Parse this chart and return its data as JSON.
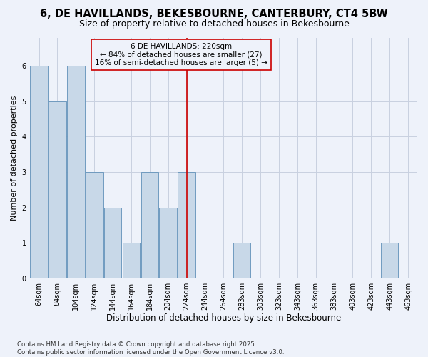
{
  "title": "6, DE HAVILLANDS, BEKESBOURNE, CANTERBURY, CT4 5BW",
  "subtitle": "Size of property relative to detached houses in Bekesbourne",
  "xlabel": "Distribution of detached houses by size in Bekesbourne",
  "ylabel": "Number of detached properties",
  "footer": "Contains HM Land Registry data © Crown copyright and database right 2025.\nContains public sector information licensed under the Open Government Licence v3.0.",
  "categories": [
    "64sqm",
    "84sqm",
    "104sqm",
    "124sqm",
    "144sqm",
    "164sqm",
    "184sqm",
    "204sqm",
    "224sqm",
    "244sqm",
    "264sqm",
    "283sqm",
    "303sqm",
    "323sqm",
    "343sqm",
    "363sqm",
    "383sqm",
    "403sqm",
    "423sqm",
    "443sqm",
    "463sqm"
  ],
  "values": [
    6,
    5,
    6,
    3,
    2,
    1,
    3,
    2,
    3,
    0,
    0,
    1,
    0,
    0,
    0,
    0,
    0,
    0,
    0,
    1,
    0
  ],
  "bar_color": "#c8d8e8",
  "bar_edge_color": "#6090b8",
  "background_color": "#eef2fa",
  "grid_color": "#c8d0e0",
  "red_line_x": 8.0,
  "red_line_color": "#cc0000",
  "annotation_text": "6 DE HAVILLANDS: 220sqm\n← 84% of detached houses are smaller (27)\n16% of semi-detached houses are larger (5) →",
  "annotation_box_color": "#cc0000",
  "ylim": [
    0,
    6.8
  ],
  "yticks": [
    0,
    1,
    2,
    3,
    4,
    5,
    6
  ],
  "title_fontsize": 10.5,
  "subtitle_fontsize": 9,
  "axis_label_fontsize": 8.5,
  "tick_fontsize": 7,
  "annotation_fontsize": 7.5,
  "ylabel_fontsize": 8
}
